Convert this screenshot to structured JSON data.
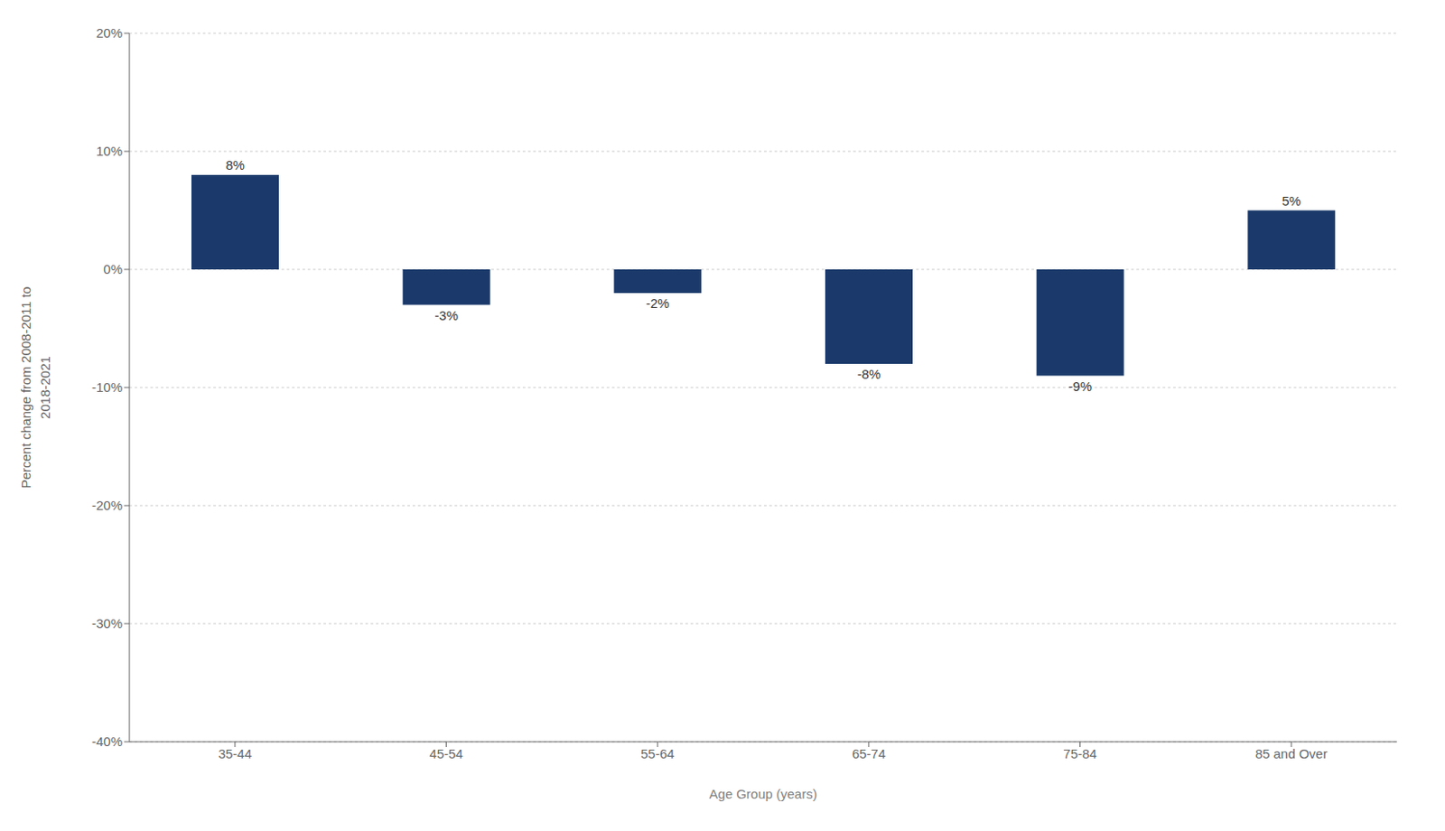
{
  "chart_data": {
    "type": "bar",
    "categories": [
      "35-44",
      "45-54",
      "55-64",
      "65-74",
      "75-84",
      "85 and Over"
    ],
    "values": [
      8,
      -3,
      -2,
      -8,
      -9,
      5
    ],
    "value_labels": [
      "8%",
      "-3%",
      "-2%",
      "-8%",
      "-9%",
      "5%"
    ],
    "color": "#1b3a6b",
    "xlabel": "Age Group (years)",
    "ylabel": "Percent change from 2008-2011 to\n2018-2021",
    "ylim": [
      -40,
      20
    ],
    "yticks": [
      {
        "value": -40,
        "label": "-40%"
      },
      {
        "value": -30,
        "label": "-30%"
      },
      {
        "value": -20,
        "label": "-20%"
      },
      {
        "value": -10,
        "label": "-10%"
      },
      {
        "value": 0,
        "label": "0%"
      },
      {
        "value": 10,
        "label": "10%"
      },
      {
        "value": 20,
        "label": "20%"
      }
    ],
    "grid": true,
    "data_labels": true
  }
}
